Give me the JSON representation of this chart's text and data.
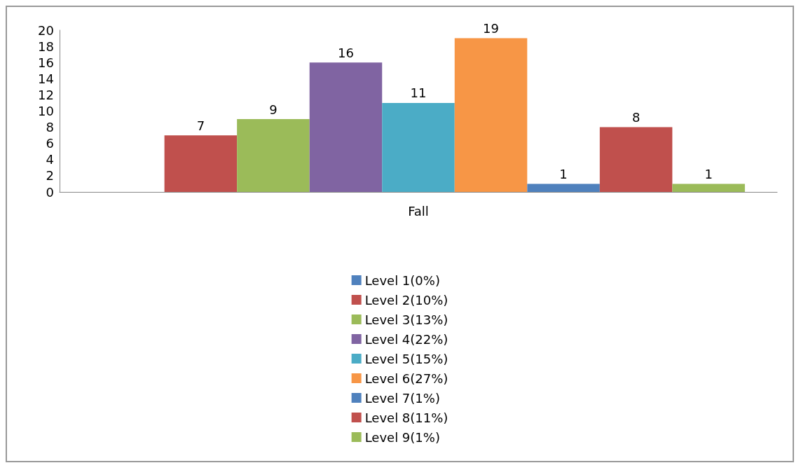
{
  "chart_data": {
    "type": "bar",
    "categories": [
      "Fall"
    ],
    "ylim": [
      0,
      20
    ],
    "yticks": [
      0,
      2,
      4,
      6,
      8,
      10,
      12,
      14,
      16,
      18,
      20
    ],
    "grid": false,
    "legend": "bottom",
    "series": [
      {
        "name": "Level 1(0%)",
        "color": "#4f81bd",
        "values": [
          0
        ],
        "value_labels": [
          null
        ]
      },
      {
        "name": "Level 2(10%)",
        "color": "#c0504d",
        "values": [
          7
        ],
        "value_labels": [
          "7"
        ]
      },
      {
        "name": "Level 3(13%)",
        "color": "#9bbb59",
        "values": [
          9
        ],
        "value_labels": [
          "9"
        ]
      },
      {
        "name": "Level 4(22%)",
        "color": "#8064a2",
        "values": [
          16
        ],
        "value_labels": [
          "16"
        ]
      },
      {
        "name": "Level 5(15%)",
        "color": "#4bacc6",
        "values": [
          11
        ],
        "value_labels": [
          "11"
        ]
      },
      {
        "name": "Level 6(27%)",
        "color": "#f79646",
        "values": [
          19
        ],
        "value_labels": [
          "19"
        ]
      },
      {
        "name": "Level 7(1%)",
        "color": "#4f81bd",
        "values": [
          1
        ],
        "value_labels": [
          "1"
        ]
      },
      {
        "name": "Level 8(11%)",
        "color": "#c0504d",
        "values": [
          8
        ],
        "value_labels": [
          "8"
        ]
      },
      {
        "name": "Level 9(1%)",
        "color": "#9bbb59",
        "values": [
          1
        ],
        "value_labels": [
          "1"
        ]
      }
    ]
  }
}
